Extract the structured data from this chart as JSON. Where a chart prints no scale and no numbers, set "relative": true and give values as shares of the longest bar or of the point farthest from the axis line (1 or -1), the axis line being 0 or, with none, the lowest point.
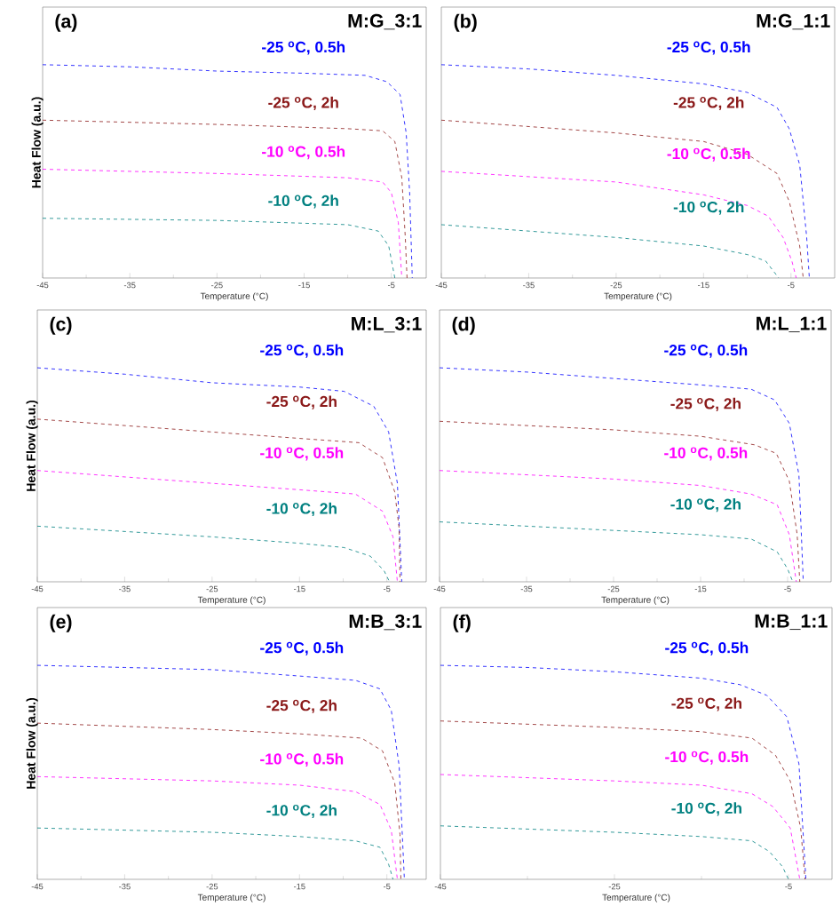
{
  "chart_data": [
    {
      "type": "line",
      "title": "(a)",
      "subtitle": "M:G_3:1",
      "xlabel": "Temperature (°C)",
      "ylabel": "Heat Flow (a.u.)",
      "relative": true,
      "xlim": [
        -45,
        -1
      ],
      "xticks": [
        -45,
        -35,
        -25,
        -15,
        -5
      ],
      "line_style": "dashed",
      "series": [
        {
          "name": "-25 $^{o}$C, 0.5h",
          "color": "#0000ff",
          "x": [
            -45,
            -35,
            -25,
            -15,
            -8,
            -5.5,
            -4,
            -3.3,
            -2.9,
            -2.6
          ],
          "values": [
            1.0,
            0.99,
            0.97,
            0.96,
            0.95,
            0.92,
            0.86,
            0.68,
            0.4,
            0
          ]
        },
        {
          "name": "-25 $^{o}$C, 2h",
          "color": "#8b1a1a",
          "x": [
            -45,
            -25,
            -10,
            -6,
            -4.6,
            -3.8,
            -3.4,
            -3.2
          ],
          "values": [
            0.74,
            0.72,
            0.7,
            0.69,
            0.64,
            0.47,
            0.19,
            0
          ]
        },
        {
          "name": "-10 $^{o}$C, 0.5h",
          "color": "#ff00ff",
          "x": [
            -45,
            -25,
            -10,
            -6,
            -5,
            -4.2,
            -3.8
          ],
          "values": [
            0.51,
            0.49,
            0.47,
            0.45,
            0.4,
            0.26,
            0
          ]
        },
        {
          "name": "-10 $^{o}$C, 2h",
          "color": "#008080",
          "x": [
            -45,
            -25,
            -10,
            -6.5,
            -5.3,
            -4.6
          ],
          "values": [
            0.28,
            0.27,
            0.25,
            0.22,
            0.15,
            0
          ]
        }
      ]
    },
    {
      "type": "line",
      "title": "(b)",
      "subtitle": "M:G_1:1",
      "xlabel": "Temperature (°C)",
      "relative": true,
      "xlim": [
        -45,
        0
      ],
      "xticks": [
        -45,
        -35,
        -25,
        -15,
        -5
      ],
      "line_style": "dashed",
      "series": [
        {
          "name": "-25 $^{o}$C, 0.5h",
          "color": "#0000ff",
          "x": [
            -45,
            -35,
            -25,
            -15,
            -10,
            -6.6,
            -5.2,
            -4,
            -3.2,
            -2.9
          ],
          "values": [
            1.0,
            0.98,
            0.95,
            0.91,
            0.87,
            0.8,
            0.7,
            0.53,
            0.19,
            0
          ]
        },
        {
          "name": "-25 $^{o}$C, 2h",
          "color": "#8b1a1a",
          "x": [
            -45,
            -25,
            -15,
            -10,
            -6.6,
            -5.2,
            -4,
            -3.6
          ],
          "values": [
            0.74,
            0.68,
            0.64,
            0.58,
            0.49,
            0.36,
            0.15,
            0
          ]
        },
        {
          "name": "-10 $^{o}$C, 0.5h",
          "color": "#ff00ff",
          "x": [
            -45,
            -25,
            -15,
            -10,
            -7.6,
            -5.9,
            -4.9,
            -4.4
          ],
          "values": [
            0.5,
            0.45,
            0.39,
            0.34,
            0.29,
            0.19,
            0.08,
            0
          ]
        },
        {
          "name": "-10 $^{o}$C, 2h",
          "color": "#008080",
          "x": [
            -45,
            -25,
            -15,
            -10,
            -7.9,
            -6.4
          ],
          "values": [
            0.25,
            0.19,
            0.15,
            0.11,
            0.08,
            0
          ]
        }
      ]
    },
    {
      "type": "line",
      "title": "(c)",
      "subtitle": "M:L_3:1",
      "xlabel": "Temperature (°C)",
      "ylabel": "Heat Flow (a.u.)",
      "relative": true,
      "xlim": [
        -45,
        -0.5
      ],
      "xticks": [
        -45,
        -35,
        -25,
        -15,
        -5
      ],
      "line_style": "dashed",
      "series": [
        {
          "name": "-25 $^{o}$C, 0.5h",
          "color": "#0000ff",
          "x": [
            -45,
            -35,
            -25,
            -15,
            -9.9,
            -6.5,
            -4.8,
            -3.8,
            -3.3
          ],
          "values": [
            1.0,
            0.97,
            0.93,
            0.91,
            0.89,
            0.82,
            0.7,
            0.46,
            0
          ]
        },
        {
          "name": "-25 $^{o}$C, 2h",
          "color": "#8b1a1a",
          "x": [
            -45,
            -25,
            -15,
            -8.2,
            -5.5,
            -4.1,
            -3.6,
            -3.5
          ],
          "values": [
            0.76,
            0.7,
            0.67,
            0.65,
            0.58,
            0.42,
            0.25,
            0
          ]
        },
        {
          "name": "-10 $^{o}$C, 0.5h",
          "color": "#ff00ff",
          "x": [
            -45,
            -25,
            -15,
            -8.6,
            -5.5,
            -4.3,
            -3.8
          ],
          "values": [
            0.52,
            0.46,
            0.43,
            0.41,
            0.33,
            0.21,
            0
          ]
        },
        {
          "name": "-10 $^{o}$C, 2h",
          "color": "#008080",
          "x": [
            -45,
            -25,
            -15,
            -9.9,
            -6.9,
            -5.3,
            -4.7
          ],
          "values": [
            0.26,
            0.21,
            0.18,
            0.16,
            0.12,
            0.05,
            0
          ]
        }
      ]
    },
    {
      "type": "line",
      "title": "(d)",
      "subtitle": "M:L_1:1",
      "xlabel": "Temperature (°C)",
      "relative": true,
      "xlim": [
        -45,
        0
      ],
      "xticks": [
        -45,
        -35,
        -25,
        -15,
        -5
      ],
      "line_style": "dashed",
      "series": [
        {
          "name": "-25 $^{o}$C, 0.5h",
          "color": "#0000ff",
          "x": [
            -45,
            -35,
            -25,
            -15,
            -9.2,
            -6.5,
            -4.8,
            -3.7,
            -3.2
          ],
          "values": [
            1.0,
            0.98,
            0.95,
            0.92,
            0.9,
            0.85,
            0.74,
            0.5,
            0
          ]
        },
        {
          "name": "-25 $^{o}$C, 2h",
          "color": "#8b1a1a",
          "x": [
            -45,
            -25,
            -15,
            -8.8,
            -6.3,
            -4.8,
            -3.9,
            -3.6
          ],
          "values": [
            0.75,
            0.71,
            0.68,
            0.64,
            0.6,
            0.47,
            0.22,
            0
          ]
        },
        {
          "name": "-10 $^{o}$C, 0.5h",
          "color": "#ff00ff",
          "x": [
            -45,
            -25,
            -15,
            -9.2,
            -6.2,
            -4.8,
            -4.0
          ],
          "values": [
            0.52,
            0.48,
            0.45,
            0.41,
            0.36,
            0.22,
            0
          ]
        },
        {
          "name": "-10 $^{o}$C, 2h",
          "color": "#008080",
          "x": [
            -45,
            -25,
            -15,
            -9.2,
            -6.2,
            -5,
            -4.4
          ],
          "values": [
            0.28,
            0.24,
            0.22,
            0.2,
            0.14,
            0.06,
            0
          ]
        }
      ]
    },
    {
      "type": "line",
      "title": "(e)",
      "subtitle": "M:B_3:1",
      "xlabel": "Temperature (°C)",
      "ylabel": "Heat Flow (a.u.)",
      "relative": true,
      "xlim": [
        -45,
        -0.5
      ],
      "xticks": [
        -45,
        -35,
        -25,
        -15,
        -5
      ],
      "line_style": "dashed",
      "series": [
        {
          "name": "-25 $^{o}$C, 0.5h",
          "color": "#0000ff",
          "x": [
            -45,
            -35,
            -25,
            -15,
            -8.6,
            -5.8,
            -4.5,
            -3.6,
            -3.0
          ],
          "values": [
            1.0,
            0.99,
            0.98,
            0.95,
            0.93,
            0.89,
            0.79,
            0.53,
            0
          ]
        },
        {
          "name": "-25 $^{o}$C, 2h",
          "color": "#8b1a1a",
          "x": [
            -45,
            -25,
            -15,
            -7.9,
            -5.5,
            -4.1,
            -3.5,
            -3.4
          ],
          "values": [
            0.73,
            0.7,
            0.68,
            0.66,
            0.6,
            0.45,
            0.21,
            0
          ]
        },
        {
          "name": "-10 $^{o}$C, 0.5h",
          "color": "#ff00ff",
          "x": [
            -45,
            -25,
            -15,
            -8.6,
            -5.8,
            -4.5,
            -3.8
          ],
          "values": [
            0.48,
            0.46,
            0.44,
            0.41,
            0.35,
            0.23,
            0
          ]
        },
        {
          "name": "-10 $^{o}$C, 2h",
          "color": "#008080",
          "x": [
            -45,
            -25,
            -15,
            -8.6,
            -5.8,
            -4.8,
            -4.3
          ],
          "values": [
            0.24,
            0.22,
            0.2,
            0.18,
            0.15,
            0.07,
            0
          ]
        }
      ]
    },
    {
      "type": "line",
      "title": "(f)",
      "subtitle": "M:B_1:1",
      "xlabel": "Temperature (°C)",
      "relative": true,
      "xlim": [
        -45,
        0
      ],
      "xticks": [
        -45,
        -25,
        -5
      ],
      "line_style": "dashed",
      "series": [
        {
          "name": "-25 $^{o}$C, 0.5h",
          "color": "#0000ff",
          "x": [
            -45,
            -35,
            -25,
            -15,
            -10.6,
            -7.5,
            -5.2,
            -3.8,
            -3.0
          ],
          "values": [
            1.0,
            0.99,
            0.97,
            0.94,
            0.91,
            0.86,
            0.76,
            0.54,
            0
          ]
        },
        {
          "name": "-25 $^{o}$C, 2h",
          "color": "#8b1a1a",
          "x": [
            -45,
            -25,
            -15,
            -9.2,
            -6.5,
            -4.8,
            -3.6,
            -3.1
          ],
          "values": [
            0.74,
            0.71,
            0.69,
            0.66,
            0.58,
            0.46,
            0.24,
            0
          ]
        },
        {
          "name": "-10 $^{o}$C, 0.5h",
          "color": "#ff00ff",
          "x": [
            -45,
            -25,
            -15,
            -9.2,
            -6.8,
            -4.8,
            -3.7
          ],
          "values": [
            0.49,
            0.46,
            0.44,
            0.4,
            0.34,
            0.24,
            0
          ]
        },
        {
          "name": "-10 $^{o}$C, 2h",
          "color": "#008080",
          "x": [
            -45,
            -25,
            -15,
            -9.2,
            -7.2,
            -5.7,
            -5
          ],
          "values": [
            0.25,
            0.22,
            0.2,
            0.18,
            0.13,
            0.06,
            0
          ]
        }
      ]
    }
  ]
}
